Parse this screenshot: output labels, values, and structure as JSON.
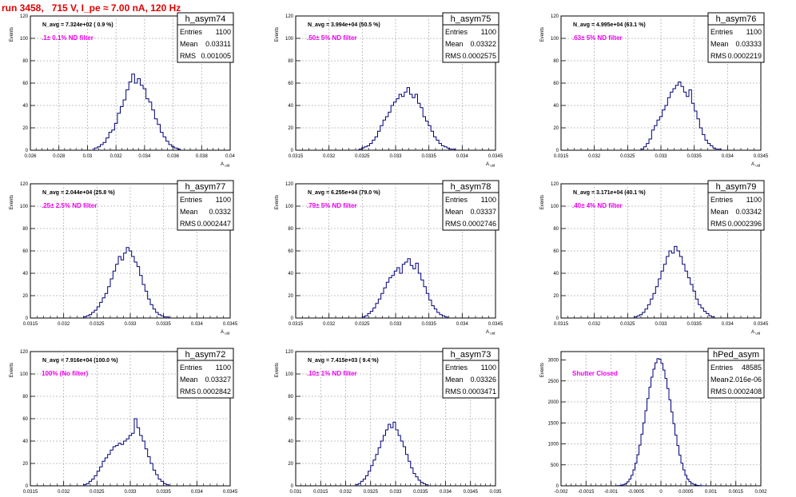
{
  "page_title": "run 3458,   715 V, I_pe ≈ 7.00 nA, 120 Hz",
  "colors": {
    "title": "#e00000",
    "annotation": "#ee00ee",
    "histogram": "#00007a",
    "grid": "#b0b0b0"
  },
  "chart_data": [
    {
      "type": "histogram",
      "name": "h_asym74",
      "n_avg_label": "N_avg = 7.324e+02 ( 0.9 %)",
      "annotation": ".1± 0.1% ND filter",
      "stats": {
        "Entries": "1100",
        "Mean": "0.03311",
        "RMS": "0.001005"
      },
      "xlim": [
        0.026,
        0.04
      ],
      "ylim": [
        0,
        120
      ],
      "xticks": [
        0.026,
        0.028,
        0.03,
        0.032,
        0.034,
        0.036,
        0.038,
        0.04
      ],
      "xtick_labels": [
        "0.026",
        "0.028",
        "0.03",
        "0.032",
        "0.034",
        "0.036",
        "0.038",
        "0.04"
      ],
      "yticks": [
        0,
        20,
        40,
        60,
        80,
        100,
        120
      ],
      "xlabel": "A_uid",
      "ylabel": "Events",
      "bins": {
        "start": 0.0305,
        "width": 0.0002,
        "counts": [
          2,
          3,
          5,
          7,
          11,
          16,
          18,
          24,
          33,
          39,
          45,
          54,
          61,
          68,
          60,
          64,
          58,
          55,
          46,
          43,
          36,
          28,
          23,
          16,
          12,
          8,
          5,
          3,
          2,
          1
        ]
      }
    },
    {
      "type": "histogram",
      "name": "h_asym75",
      "n_avg_label": "N_avg = 3.994e+04 (50.5 %)",
      "annotation": ".50± 5% ND filter",
      "stats": {
        "Entries": "1100",
        "Mean": "0.03322",
        "RMS": "0.0002575"
      },
      "xlim": [
        0.0315,
        0.0345
      ],
      "ylim": [
        0,
        120
      ],
      "xticks": [
        0.0315,
        0.032,
        0.0325,
        0.033,
        0.0335,
        0.034,
        0.0345
      ],
      "xtick_labels": [
        "0.0315",
        "0.032",
        "0.0325",
        "0.033",
        "0.0335",
        "0.034",
        "0.0345"
      ],
      "yticks": [
        0,
        20,
        40,
        60,
        80,
        100,
        120
      ],
      "xlabel": "A_uid",
      "ylabel": "Events",
      "bins": {
        "start": 0.03245,
        "width": 4e-05,
        "counts": [
          1,
          2,
          3,
          4,
          6,
          9,
          12,
          17,
          22,
          27,
          30,
          34,
          40,
          43,
          46,
          50,
          48,
          52,
          56,
          50,
          47,
          50,
          42,
          38,
          30,
          26,
          22,
          17,
          12,
          9,
          6,
          4,
          3,
          2,
          1,
          1
        ]
      }
    },
    {
      "type": "histogram",
      "name": "h_asym76",
      "n_avg_label": "N_avg = 4.995e+04 (63.1 %)",
      "annotation": ".63± 5% ND filter",
      "stats": {
        "Entries": "1100",
        "Mean": "0.03333",
        "RMS": "0.0002219"
      },
      "xlim": [
        0.0315,
        0.0345
      ],
      "ylim": [
        0,
        120
      ],
      "xticks": [
        0.0315,
        0.032,
        0.0325,
        0.033,
        0.0335,
        0.034,
        0.0345
      ],
      "xtick_labels": [
        "0.0315",
        "0.032",
        "0.0325",
        "0.033",
        "0.0335",
        "0.034",
        "0.0345"
      ],
      "yticks": [
        0,
        20,
        40,
        60,
        80,
        100,
        120
      ],
      "xlabel": "A_uid",
      "ylabel": "Events",
      "bins": {
        "start": 0.0327,
        "width": 4e-05,
        "counts": [
          1,
          3,
          6,
          10,
          18,
          22,
          27,
          30,
          36,
          40,
          47,
          52,
          55,
          58,
          61,
          57,
          52,
          48,
          54,
          42,
          35,
          28,
          20,
          14,
          9,
          6,
          4,
          2,
          1,
          1
        ]
      }
    },
    {
      "type": "histogram",
      "name": "h_asym77",
      "n_avg_label": "N_avg = 2.044e+04 (25.8 %)",
      "annotation": ".25± 2.5% ND filter",
      "stats": {
        "Entries": "1100",
        "Mean": "0.0332",
        "RMS": "0.0002447"
      },
      "xlim": [
        0.0315,
        0.0345
      ],
      "ylim": [
        0,
        120
      ],
      "xticks": [
        0.0315,
        0.032,
        0.0325,
        0.033,
        0.0335,
        0.034,
        0.0345
      ],
      "xtick_labels": [
        "0.0315",
        "0.032",
        "0.0325",
        "0.033",
        "0.0335",
        "0.034",
        "0.0345"
      ],
      "yticks": [
        0,
        20,
        40,
        60,
        80,
        100,
        120
      ],
      "xlabel": "A_uid",
      "ylabel": "Events",
      "bins": {
        "start": 0.0323,
        "width": 4e-05,
        "counts": [
          1,
          2,
          3,
          5,
          7,
          10,
          14,
          18,
          22,
          28,
          35,
          42,
          48,
          55,
          52,
          58,
          63,
          60,
          55,
          50,
          46,
          38,
          30,
          24,
          17,
          12,
          8,
          5,
          3,
          2,
          1,
          1
        ]
      }
    },
    {
      "type": "histogram",
      "name": "h_asym78",
      "n_avg_label": "N_avg = 6.255e+04 (79.0 %)",
      "annotation": ".79± 5% ND filter",
      "stats": {
        "Entries": "1100",
        "Mean": "0.03337",
        "RMS": "0.0002746"
      },
      "xlim": [
        0.0315,
        0.0345
      ],
      "ylim": [
        0,
        120
      ],
      "xticks": [
        0.0315,
        0.032,
        0.0325,
        0.033,
        0.0335,
        0.034,
        0.0345
      ],
      "xtick_labels": [
        "0.0315",
        "0.032",
        "0.0325",
        "0.033",
        "0.0335",
        "0.034",
        "0.0345"
      ],
      "yticks": [
        0,
        20,
        40,
        60,
        80,
        100,
        120
      ],
      "xlabel": "A_uid",
      "ylabel": "Events",
      "bins": {
        "start": 0.0325,
        "width": 4e-05,
        "counts": [
          1,
          2,
          4,
          6,
          9,
          13,
          17,
          22,
          27,
          32,
          36,
          38,
          42,
          45,
          40,
          48,
          50,
          53,
          47,
          44,
          49,
          40,
          34,
          28,
          22,
          16,
          11,
          8,
          5,
          3,
          2,
          1
        ]
      }
    },
    {
      "type": "histogram",
      "name": "h_asym79",
      "n_avg_label": "N_avg = 3.171e+04 (40.1 %)",
      "annotation": ".40± 4% ND filter",
      "stats": {
        "Entries": "1100",
        "Mean": "0.03342",
        "RMS": "0.0002396"
      },
      "xlim": [
        0.0315,
        0.0345
      ],
      "ylim": [
        0,
        120
      ],
      "xticks": [
        0.0315,
        0.032,
        0.0325,
        0.033,
        0.0335,
        0.034,
        0.0345
      ],
      "xtick_labels": [
        "0.0315",
        "0.032",
        "0.0325",
        "0.033",
        "0.0335",
        "0.034",
        "0.0345"
      ],
      "yticks": [
        0,
        20,
        40,
        60,
        80,
        100,
        120
      ],
      "xlabel": "A_uid",
      "ylabel": "Events",
      "bins": {
        "start": 0.0326,
        "width": 4e-05,
        "counts": [
          1,
          2,
          3,
          5,
          8,
          12,
          17,
          22,
          28,
          35,
          42,
          48,
          55,
          60,
          58,
          64,
          60,
          55,
          48,
          42,
          36,
          30,
          24,
          17,
          12,
          9,
          6,
          4,
          2,
          1
        ]
      }
    },
    {
      "type": "histogram",
      "name": "h_asym72",
      "n_avg_label": "N_avg = 7.916e+04 (100.0 %)",
      "annotation": "100% (No filter)",
      "stats": {
        "Entries": "1100",
        "Mean": "0.03327",
        "RMS": "0.0002842"
      },
      "xlim": [
        0.0315,
        0.0345
      ],
      "ylim": [
        0,
        120
      ],
      "xticks": [
        0.0315,
        0.032,
        0.0325,
        0.033,
        0.0335,
        0.034,
        0.0345
      ],
      "xtick_labels": [
        "0.0315",
        "0.032",
        "0.0325",
        "0.033",
        "0.0335",
        "0.034",
        "0.0345"
      ],
      "yticks": [
        0,
        20,
        40,
        60,
        80,
        100,
        120
      ],
      "xlabel": "A_uid",
      "ylabel": "Events",
      "bins": {
        "start": 0.0323,
        "width": 4e-05,
        "counts": [
          1,
          2,
          4,
          6,
          9,
          13,
          17,
          22,
          25,
          28,
          32,
          35,
          36,
          38,
          37,
          40,
          42,
          45,
          47,
          60,
          52,
          45,
          40,
          33,
          26,
          20,
          14,
          10,
          6,
          4,
          2,
          1
        ]
      }
    },
    {
      "type": "histogram",
      "name": "h_asym73",
      "n_avg_label": "N_avg = 7.415e+03 ( 9.4 %)",
      "annotation": ".10± 1% ND filter",
      "stats": {
        "Entries": "1100",
        "Mean": "0.03326",
        "RMS": "0.0003471"
      },
      "xlim": [
        0.031,
        0.035
      ],
      "ylim": [
        0,
        120
      ],
      "xticks": [
        0.031,
        0.0315,
        0.032,
        0.0325,
        0.033,
        0.0335,
        0.034,
        0.0345,
        0.035
      ],
      "xtick_labels": [
        "0.031",
        "0.0315",
        "0.032",
        "0.0325",
        "0.033",
        "0.0335",
        "0.034",
        "0.0345",
        "0.035"
      ],
      "yticks": [
        0,
        20,
        40,
        60,
        80,
        100,
        120
      ],
      "xlabel": "A_uid",
      "ylabel": "Events",
      "bins": {
        "start": 0.0322,
        "width": 5e-05,
        "counts": [
          1,
          2,
          4,
          6,
          9,
          13,
          18,
          23,
          28,
          34,
          40,
          45,
          50,
          55,
          52,
          57,
          50,
          45,
          40,
          35,
          28,
          22,
          16,
          11,
          8,
          5,
          3,
          2,
          1
        ]
      }
    },
    {
      "type": "histogram",
      "name": "hPed_asym",
      "n_avg_label": "",
      "annotation": "Shutter Closed",
      "stats": {
        "Entries": "48585",
        "Mean": "-2.016e-06",
        "RMS": "0.0002408"
      },
      "xlim": [
        -0.002,
        0.002
      ],
      "ylim": [
        0,
        3200
      ],
      "xticks": [
        -0.002,
        -0.0015,
        -0.001,
        -0.0005,
        0,
        0.0005,
        0.001,
        0.0015,
        0.002
      ],
      "xtick_labels": [
        "-0.002",
        "-0.0015",
        "-0.001",
        "-0.0005",
        "0",
        "0.0005",
        "0.001",
        "0.0015",
        "0.002"
      ],
      "yticks": [
        0,
        500,
        1000,
        1500,
        2000,
        2500,
        3000
      ],
      "xlabel": "",
      "ylabel": "Events",
      "bins": {
        "start": -0.00088,
        "width": 4e-05,
        "counts": [
          4,
          8,
          15,
          30,
          55,
          95,
          160,
          250,
          380,
          540,
          740,
          970,
          1230,
          1500,
          1790,
          2080,
          2350,
          2590,
          2780,
          2930,
          3030,
          3020,
          2920,
          2760,
          2560,
          2320,
          2050,
          1760,
          1480,
          1210,
          960,
          730,
          540,
          380,
          250,
          160,
          100,
          60,
          35,
          20,
          10,
          5,
          2,
          1
        ]
      }
    }
  ]
}
